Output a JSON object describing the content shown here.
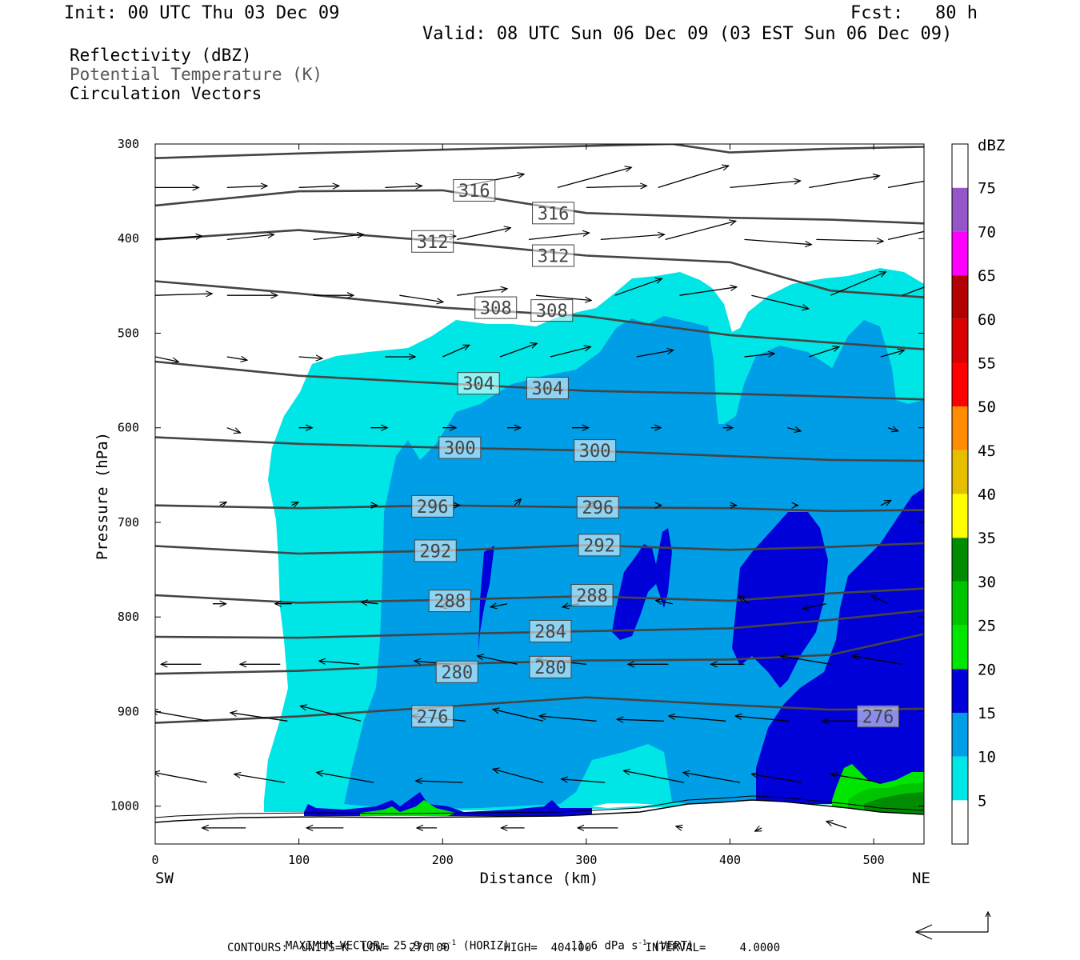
{
  "header": {
    "init": "Init: 00 UTC Thu 03 Dec 09",
    "fcst": "Fcst:   80 h",
    "valid": "Valid: 08 UTC Sun 06 Dec 09 (03 EST Sun 06 Dec 09)"
  },
  "fields": {
    "reflectivity": "Reflectivity (dBZ)",
    "theta": "Potential Temperature (K)",
    "vectors": "Circulation Vectors"
  },
  "axes": {
    "ylabel": "Pressure (hPa)",
    "xlabel": "Distance (km)",
    "x_left_end": "SW",
    "x_right_end": "NE",
    "y_ticks": [
      "300",
      "400",
      "500",
      "600",
      "700",
      "800",
      "900",
      "1000"
    ],
    "x_ticks": [
      "0",
      "100",
      "200",
      "300",
      "400",
      "500"
    ]
  },
  "colorbar": {
    "unit": "dBZ",
    "labels": [
      "75",
      "70",
      "65",
      "60",
      "55",
      "50",
      "45",
      "40",
      "35",
      "30",
      "25",
      "20",
      "15",
      "10",
      "5"
    ],
    "colors": [
      "#ffffff",
      "#00e6e6",
      "#009ee6",
      "#0000d8",
      "#00e600",
      "#00c400",
      "#008c00",
      "#ffff00",
      "#e6be00",
      "#ff8c00",
      "#ff0000",
      "#d80000",
      "#b40000",
      "#ff00ff",
      "#9655c8",
      "#ffffff"
    ]
  },
  "footer": {
    "maxvec_label": "MAXIMUM VECTOR:",
    "maxvec_horiz": "25.9 m s",
    "maxvec_horiz_unit": "(HORIZ)",
    "maxvec_vert": "11.6 dPa s",
    "maxvec_vert_unit": "(VERT)",
    "exp": "-1",
    "contours": "CONTOURS:  UNITS=K  LOW=   276.00        HIGH=  404.00        INTERVAL=     4.0000"
  },
  "chart_data": {
    "type": "cross-section",
    "xlabel": "Distance (km)",
    "ylabel": "Pressure (hPa)",
    "xlim": [
      0,
      535
    ],
    "ylim": [
      300,
      1040
    ],
    "x_ticks": [
      0,
      100,
      200,
      300,
      400,
      500
    ],
    "y_ticks": [
      300,
      400,
      500,
      600,
      700,
      800,
      900,
      1000
    ],
    "shaded_field": "Reflectivity (dBZ)",
    "dbz_levels": [
      5,
      10,
      15,
      20,
      25,
      30,
      35,
      40,
      45,
      50,
      55,
      60,
      65,
      70,
      75
    ],
    "contour_field": "Potential Temperature (K)",
    "theta_contours": [
      {
        "value": 276,
        "labels": [
          [
            193,
            905
          ],
          [
            503,
            905
          ]
        ],
        "points": [
          [
            0,
            912
          ],
          [
            100,
            905
          ],
          [
            200,
            895
          ],
          [
            300,
            885
          ],
          [
            400,
            893
          ],
          [
            470,
            898
          ],
          [
            535,
            897
          ]
        ]
      },
      {
        "value": 280,
        "labels": [
          [
            210,
            858
          ],
          [
            275,
            853
          ]
        ],
        "points": [
          [
            0,
            860
          ],
          [
            100,
            857
          ],
          [
            200,
            850
          ],
          [
            300,
            846
          ],
          [
            400,
            845
          ],
          [
            470,
            840
          ],
          [
            535,
            818
          ]
        ]
      },
      {
        "value": 284,
        "labels": [
          [
            275,
            815
          ]
        ],
        "points": [
          [
            0,
            821
          ],
          [
            100,
            822
          ],
          [
            200,
            818
          ],
          [
            300,
            815
          ],
          [
            400,
            812
          ],
          [
            470,
            803
          ],
          [
            535,
            793
          ]
        ]
      },
      {
        "value": 288,
        "labels": [
          [
            205,
            783
          ],
          [
            304,
            777
          ]
        ],
        "points": [
          [
            0,
            777
          ],
          [
            100,
            785
          ],
          [
            200,
            782
          ],
          [
            300,
            778
          ],
          [
            400,
            783
          ],
          [
            470,
            775
          ],
          [
            535,
            770
          ]
        ]
      },
      {
        "value": 292,
        "labels": [
          [
            195,
            730
          ],
          [
            309,
            724
          ]
        ],
        "points": [
          [
            0,
            725
          ],
          [
            100,
            733
          ],
          [
            200,
            730
          ],
          [
            300,
            724
          ],
          [
            400,
            729
          ],
          [
            470,
            726
          ],
          [
            535,
            722
          ]
        ]
      },
      {
        "value": 296,
        "labels": [
          [
            193,
            683
          ],
          [
            308,
            684
          ]
        ],
        "points": [
          [
            0,
            682
          ],
          [
            100,
            685
          ],
          [
            200,
            682
          ],
          [
            300,
            684
          ],
          [
            400,
            685
          ],
          [
            470,
            688
          ],
          [
            535,
            687
          ]
        ]
      },
      {
        "value": 300,
        "labels": [
          [
            212,
            621
          ],
          [
            306,
            624
          ]
        ],
        "points": [
          [
            0,
            610
          ],
          [
            100,
            617
          ],
          [
            200,
            621
          ],
          [
            300,
            624
          ],
          [
            400,
            630
          ],
          [
            470,
            634
          ],
          [
            535,
            635
          ]
        ]
      },
      {
        "value": 304,
        "labels": [
          [
            225,
            553
          ],
          [
            273,
            558
          ]
        ],
        "points": [
          [
            0,
            530
          ],
          [
            100,
            545
          ],
          [
            200,
            553
          ],
          [
            300,
            561
          ],
          [
            400,
            564
          ],
          [
            470,
            567
          ],
          [
            535,
            570
          ]
        ]
      },
      {
        "value": 308,
        "labels": [
          [
            237,
            473
          ],
          [
            276,
            476
          ]
        ],
        "points": [
          [
            0,
            445
          ],
          [
            100,
            458
          ],
          [
            200,
            473
          ],
          [
            300,
            482
          ],
          [
            400,
            502
          ],
          [
            470,
            510
          ],
          [
            535,
            517
          ]
        ]
      },
      {
        "value": 312,
        "labels": [
          [
            193,
            403
          ],
          [
            277,
            418
          ]
        ],
        "points": [
          [
            0,
            401
          ],
          [
            100,
            391
          ],
          [
            200,
            403
          ],
          [
            300,
            418
          ],
          [
            400,
            425
          ],
          [
            470,
            455
          ],
          [
            535,
            462
          ]
        ]
      },
      {
        "value": 316,
        "labels": [
          [
            222,
            349
          ],
          [
            277,
            373
          ]
        ],
        "points": [
          [
            0,
            365
          ],
          [
            100,
            350
          ],
          [
            200,
            349
          ],
          [
            300,
            373
          ],
          [
            400,
            378
          ],
          [
            470,
            380
          ],
          [
            535,
            384
          ]
        ]
      },
      {
        "value": 320,
        "labels": [],
        "points": [
          [
            0,
            315
          ],
          [
            100,
            310
          ],
          [
            200,
            306
          ],
          [
            300,
            302
          ],
          [
            360,
            300
          ],
          [
            400,
            309
          ],
          [
            470,
            305
          ],
          [
            535,
            303
          ]
        ]
      }
    ],
    "vectors": [
      {
        "x": 5,
        "p": 346,
        "u": 26,
        "w": 0
      },
      {
        "x": 50,
        "p": 346,
        "u": 24,
        "w": -1
      },
      {
        "x": 100,
        "p": 346,
        "u": 24,
        "w": -1
      },
      {
        "x": 160,
        "p": 346,
        "u": 22,
        "w": -1
      },
      {
        "x": 5,
        "p": 401,
        "u": 28,
        "w": -2
      },
      {
        "x": 50,
        "p": 401,
        "u": 28,
        "w": -3
      },
      {
        "x": 110,
        "p": 401,
        "u": 30,
        "w": -3
      },
      {
        "x": 180,
        "p": 401,
        "u": 25,
        "w": -2
      },
      {
        "x": 5,
        "p": 460,
        "u": 34,
        "w": -1
      },
      {
        "x": 50,
        "p": 460,
        "u": 30,
        "w": 0
      },
      {
        "x": 110,
        "p": 460,
        "u": 24,
        "w": 0
      },
      {
        "x": 170,
        "p": 460,
        "u": 26,
        "w": 4
      }
    ]
  }
}
